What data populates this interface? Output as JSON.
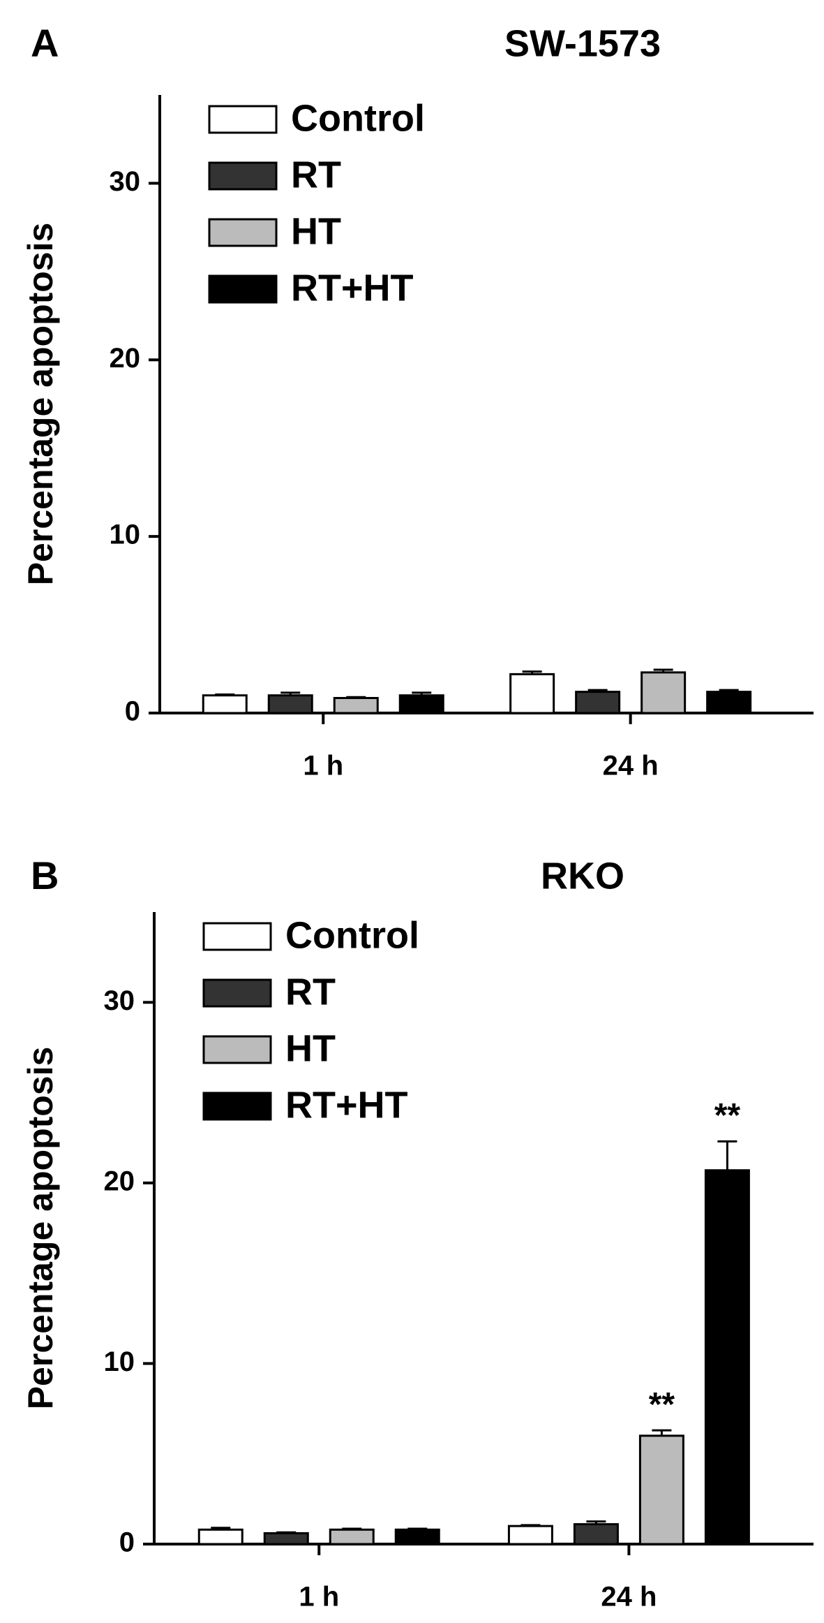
{
  "chart_data": [
    {
      "type": "bar",
      "panel": "A",
      "title": "SW-1573",
      "y_label": "Percentage apoptosis",
      "categories": [
        "1 h",
        "24 h"
      ],
      "ylim": [
        0,
        35
      ],
      "yticks": [
        0,
        10,
        20,
        30
      ],
      "series": [
        {
          "name": "Control",
          "color": "#ffffff",
          "values": [
            1.0,
            2.2
          ],
          "errors": [
            0.05,
            0.15
          ]
        },
        {
          "name": "RT",
          "color": "#333333",
          "values": [
            1.0,
            1.2
          ],
          "errors": [
            0.15,
            0.1
          ]
        },
        {
          "name": "HT",
          "color": "#bbbbbb",
          "values": [
            0.85,
            2.3
          ],
          "errors": [
            0.05,
            0.15
          ]
        },
        {
          "name": "RT+HT",
          "color": "#000000",
          "values": [
            1.0,
            1.2
          ],
          "errors": [
            0.15,
            0.1
          ]
        }
      ]
    },
    {
      "type": "bar",
      "panel": "B",
      "title": "RKO",
      "y_label": "Percentage apoptosis",
      "categories": [
        "1 h",
        "24 h"
      ],
      "ylim": [
        0,
        35
      ],
      "yticks": [
        0,
        10,
        20,
        30
      ],
      "series": [
        {
          "name": "Control",
          "color": "#ffffff",
          "values": [
            0.8,
            1.0
          ],
          "errors": [
            0.1,
            0.05
          ]
        },
        {
          "name": "RT",
          "color": "#333333",
          "values": [
            0.6,
            1.1
          ],
          "errors": [
            0.05,
            0.15
          ]
        },
        {
          "name": "HT",
          "color": "#bbbbbb",
          "values": [
            0.8,
            6.0
          ],
          "errors": [
            0.05,
            0.3
          ]
        },
        {
          "name": "RT+HT",
          "color": "#000000",
          "values": [
            0.8,
            20.7
          ],
          "errors": [
            0.05,
            1.6
          ]
        }
      ],
      "annotations": [
        {
          "text": "**",
          "category": "24 h",
          "series": "HT"
        },
        {
          "text": "**",
          "category": "24 h",
          "series": "RT+HT"
        }
      ]
    }
  ]
}
